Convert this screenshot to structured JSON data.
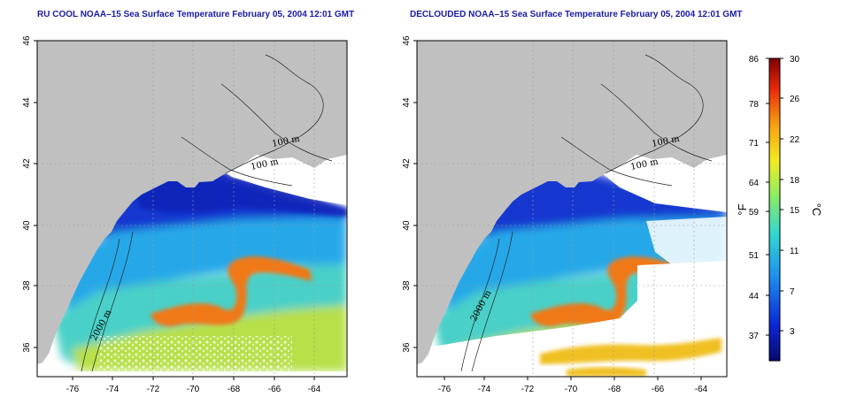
{
  "panels": [
    {
      "title": "RU COOL NOAA–15 Sea Surface Temperature February 05, 2004 12:01 GMT",
      "lon_ticks": [
        "-76",
        "-74",
        "-72",
        "-70",
        "-68",
        "-66",
        "-64"
      ],
      "lat_ticks": [
        "46",
        "44",
        "42",
        "40",
        "38",
        "36"
      ],
      "contour_labels": [
        "100 m",
        "100 m",
        "2000 m"
      ]
    },
    {
      "title": "DECLOUDED NOAA–15 Sea Surface Temperature February 05, 2004 12:01 GMT",
      "lon_ticks": [
        "-76",
        "-74",
        "-72",
        "-70",
        "-68",
        "-66",
        "-64"
      ],
      "lat_ticks": [
        "46",
        "44",
        "42",
        "40",
        "38",
        "36"
      ],
      "contour_labels": [
        "100 m",
        "100 m",
        "2000 m"
      ]
    }
  ],
  "colorbar": {
    "fahrenheit_ticks": [
      "86",
      "78",
      "71",
      "64",
      "59",
      "51",
      "44",
      "37"
    ],
    "celsius_ticks": [
      "30",
      "26",
      "22",
      "18",
      "15",
      "11",
      "7",
      "3"
    ],
    "unit_f": "°F",
    "unit_c": "°C"
  },
  "colors": {
    "land": "#c0c0c0",
    "cold": "#0a1aa8",
    "cool": "#1a6ee0",
    "mild": "#3cc6d8",
    "warm": "#f0d020",
    "hot": "#f08010",
    "title": "#1a1aa6"
  }
}
